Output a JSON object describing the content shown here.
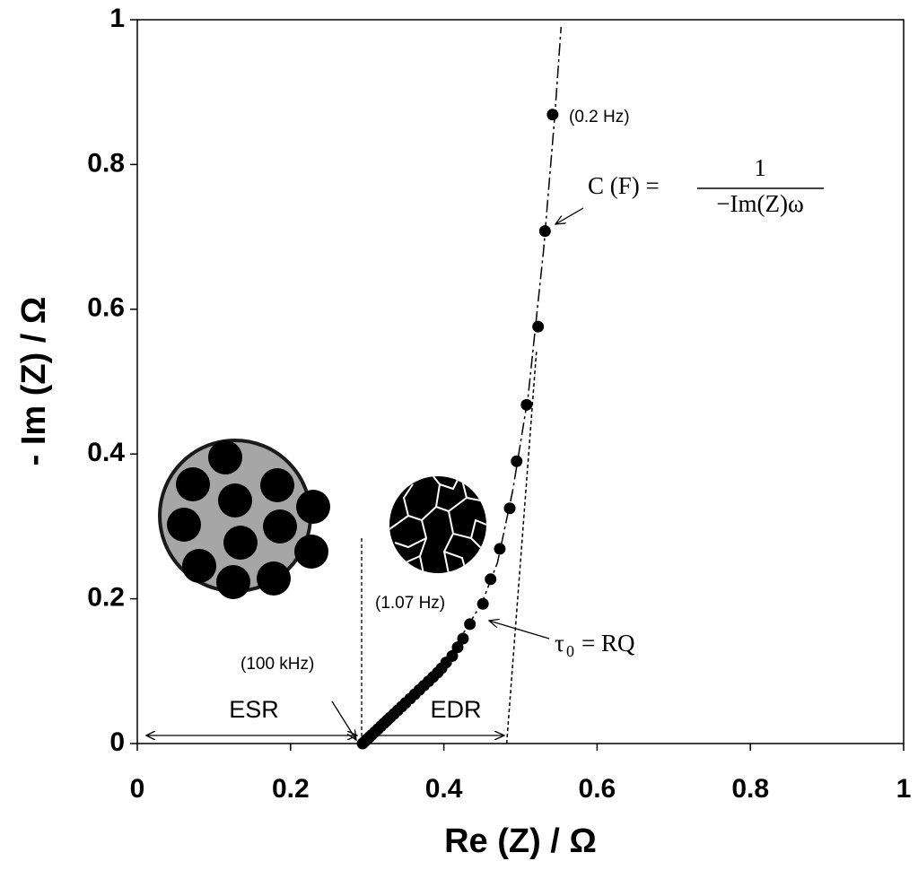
{
  "chart_data": {
    "type": "scatter",
    "x_label": "Re (Z) / Ω",
    "y_label": "- Im (Z) / Ω",
    "xlim": [
      0,
      1
    ],
    "ylim": [
      0,
      1
    ],
    "xticks": [
      0,
      0.2,
      0.4,
      0.6,
      0.8,
      1
    ],
    "yticks": [
      0,
      0.2,
      0.4,
      0.6,
      0.8,
      1
    ],
    "color": "#000000",
    "x": [
      0.294,
      0.297,
      0.3,
      0.303,
      0.306,
      0.31,
      0.314,
      0.318,
      0.322,
      0.326,
      0.33,
      0.335,
      0.34,
      0.345,
      0.35,
      0.356,
      0.362,
      0.368,
      0.374,
      0.38,
      0.386,
      0.392,
      0.397,
      0.403,
      0.411,
      0.418,
      0.425,
      0.434,
      0.451,
      0.461,
      0.473,
      0.486,
      0.495,
      0.508,
      0.523,
      0.532,
      0.542
    ],
    "values": [
      0,
      0.003,
      0.006,
      0.009,
      0.012,
      0.016,
      0.02,
      0.024,
      0.028,
      0.032,
      0.036,
      0.041,
      0.046,
      0.051,
      0.056,
      0.062,
      0.068,
      0.074,
      0.08,
      0.086,
      0.092,
      0.098,
      0.104,
      0.112,
      0.121,
      0.133,
      0.145,
      0.165,
      0.193,
      0.227,
      0.269,
      0.325,
      0.39,
      0.468,
      0.576,
      0.708,
      0.869
    ],
    "fit_curve": {
      "x": [
        0.294,
        0.35,
        0.4,
        0.43,
        0.45,
        0.47,
        0.49,
        0.51,
        0.53,
        0.545,
        0.553
      ],
      "values": [
        0,
        0.056,
        0.11,
        0.16,
        0.195,
        0.25,
        0.35,
        0.48,
        0.68,
        0.87,
        0.99
      ]
    },
    "asymptote": {
      "x": [
        0.482,
        0.521
      ],
      "values": [
        0,
        0.544
      ]
    },
    "annotations": {
      "f_low": "(0.2 Hz)",
      "f_mid": "(1.07 Hz)",
      "f_high": "(100 kHz)",
      "esr": "ESR",
      "edr": "EDR",
      "cap_lhs": "C (F) =",
      "cap_num": "1",
      "cap_den": "−Im(Z)ω",
      "tau": "τ",
      "tau_sub": "0",
      "tau_rhs": "= RQ"
    }
  }
}
